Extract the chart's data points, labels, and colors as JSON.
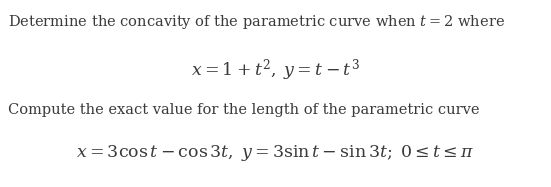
{
  "line1": "Determine the concavity of the parametric curve when $t = 2$ where",
  "line2": "$x = 1 + t^2, \\; y = t - t^3$",
  "line3": "Compute the exact value for the length of the parametric curve",
  "line4": "$x = 3\\cos t - \\cos 3t, \\; y = 3\\sin t - \\sin 3t; \\; 0 \\leq t \\leq \\pi$",
  "background_color": "#ffffff",
  "text_color": "#3a3a3a",
  "fontsize_body": 10.5,
  "fontsize_math": 12.5,
  "fig_width": 5.51,
  "fig_height": 1.87,
  "dpi": 100
}
